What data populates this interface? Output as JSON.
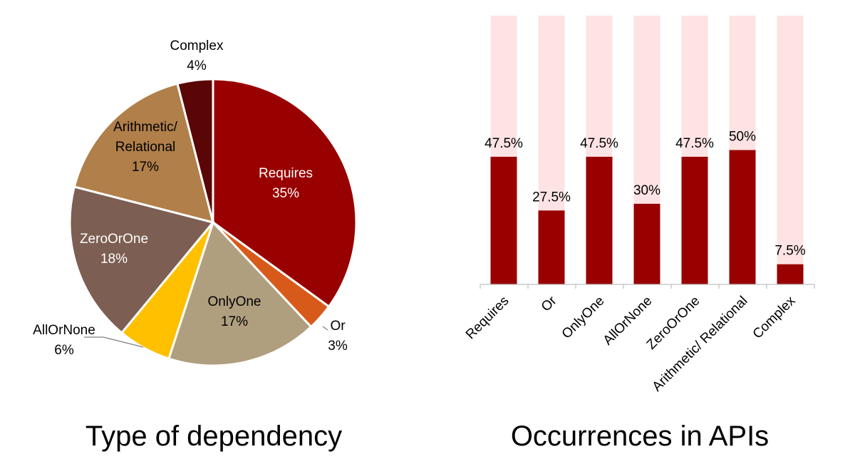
{
  "chart_data": [
    {
      "type": "pie",
      "title": "Type of dependency",
      "slices": [
        {
          "label": "Requires",
          "pct_label": "35%",
          "value": 35,
          "color": "#990000"
        },
        {
          "label": "Or",
          "pct_label": "3%",
          "value": 3,
          "color": "#D85A1A"
        },
        {
          "label": "OnlyOne",
          "pct_label": "17%",
          "value": 17,
          "color": "#B09F7F"
        },
        {
          "label": "AllOrNone",
          "pct_label": "6%",
          "value": 6,
          "color": "#FFC000"
        },
        {
          "label": "ZeroOrOne",
          "pct_label": "18%",
          "value": 18,
          "color": "#7D5E52"
        },
        {
          "label": "Arithmetic/ Relational",
          "label_lines": [
            "Arithmetic/",
            "Relational"
          ],
          "pct_label": "17%",
          "value": 17,
          "color": "#B07F4A"
        },
        {
          "label": "Complex",
          "pct_label": "4%",
          "value": 4,
          "color": "#5A0606"
        }
      ]
    },
    {
      "type": "bar",
      "title": "Occurrences in APIs",
      "categories": [
        "Requires",
        "Or",
        "OnlyOne",
        "AllOrNone",
        "ZeroOrOne",
        "Arithmetic/ Relational",
        "Complex"
      ],
      "values": [
        47.5,
        27.5,
        47.5,
        30,
        47.5,
        50,
        7.5
      ],
      "value_labels": [
        "47.5%",
        "27.5%",
        "47.5%",
        "30%",
        "47.5%",
        "50%",
        "7.5%"
      ],
      "ylim": [
        0,
        100
      ],
      "bar_color": "#990000",
      "background_bar_color": "#FDE3E3",
      "grid": false
    }
  ]
}
